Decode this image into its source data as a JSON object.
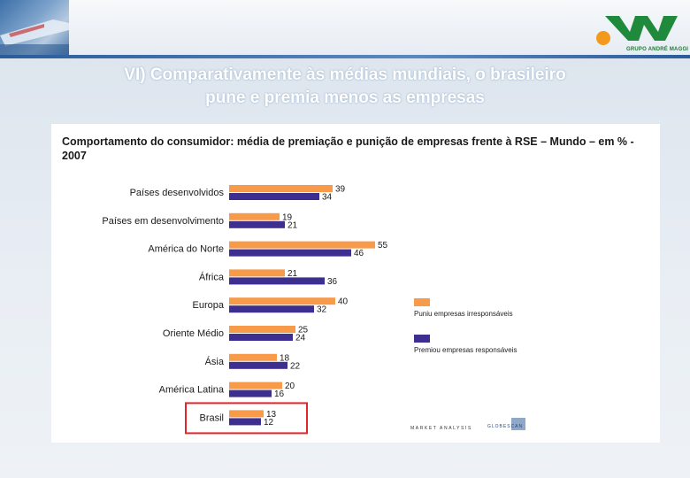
{
  "slide": {
    "title_line1": "VI) Comparativamente às médias mundiais, o brasileiro",
    "title_line2": "pune e premia menos as empresas"
  },
  "logo": {
    "text": "GRUPO ANDRÉ MAGGI",
    "colors": {
      "green": "#1f8a3c",
      "orange": "#f39a1e"
    }
  },
  "chart_data": {
    "type": "bar",
    "orientation": "horizontal",
    "title": "Comportamento do consumidor: média de premiação e punição de empresas frente à RSE – Mundo – em % - 2007",
    "categories": [
      "Países desenvolvidos",
      "Países em desenvolvimento",
      "América do Norte",
      "África",
      "Europa",
      "Oriente Médio",
      "Ásia",
      "América Latina",
      "Brasil"
    ],
    "series": [
      {
        "name": "Puniu empresas irresponsáveis",
        "color": "#f79a4a",
        "values": [
          39,
          19,
          55,
          21,
          40,
          25,
          18,
          20,
          13
        ]
      },
      {
        "name": "Premiou empresas responsáveis",
        "color": "#3d2f8f",
        "values": [
          34,
          21,
          46,
          36,
          32,
          24,
          22,
          16,
          12
        ]
      }
    ],
    "xlim": [
      0,
      60
    ],
    "grid": false,
    "legend": "right",
    "highlight_category": "Brasil",
    "highlight_color": "#e3262b"
  },
  "sources": {
    "source1": "MARKET ANALYSIS",
    "source2": "GLOBESCAN"
  }
}
